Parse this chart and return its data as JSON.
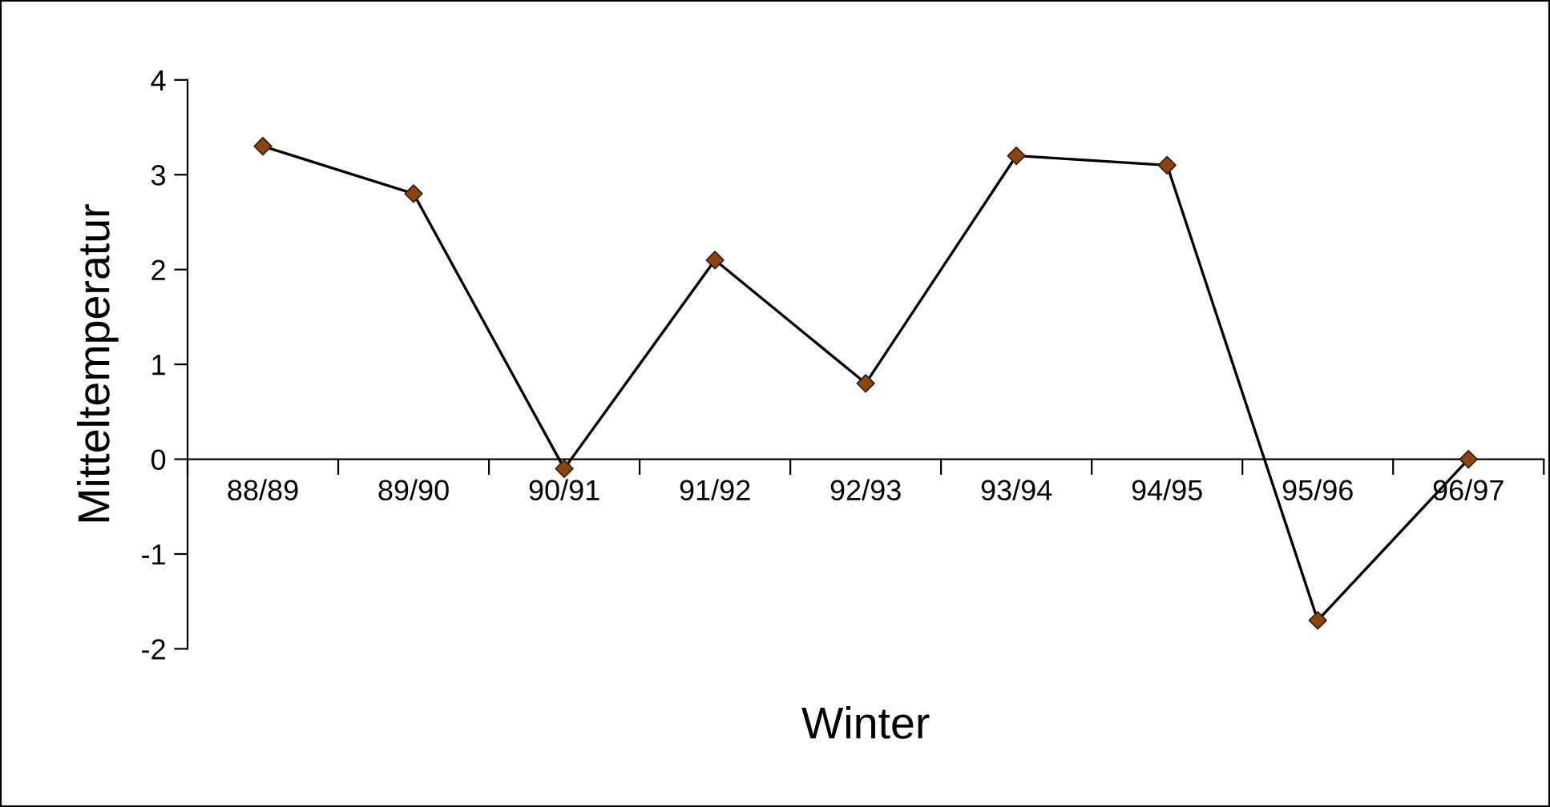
{
  "chart_data": {
    "type": "line",
    "xlabel": "Winter",
    "ylabel": "Mitteltemperatur",
    "categories": [
      "88/89",
      "89/90",
      "90/91",
      "91/92",
      "92/93",
      "93/94",
      "94/95",
      "95/96",
      "96/97"
    ],
    "series": [
      {
        "color": "#000000",
        "colors": [
          "#8b4513",
          "#8b4513",
          "#8b4513",
          "#8b4513",
          "#8b4513",
          "#8b4513",
          "#8b4513",
          "#8b4513",
          "#8b4513"
        ],
        "values": [
          3.3,
          2.8,
          -0.1,
          2.1,
          0.8,
          3.2,
          3.1,
          -1.7,
          0.0
        ]
      }
    ],
    "ylim": [
      -2,
      4
    ],
    "yticks": [
      -2,
      -1,
      0,
      1,
      2,
      3,
      4
    ],
    "marker": "diamond",
    "line_style": "solid",
    "grid": false,
    "legend": false
  }
}
